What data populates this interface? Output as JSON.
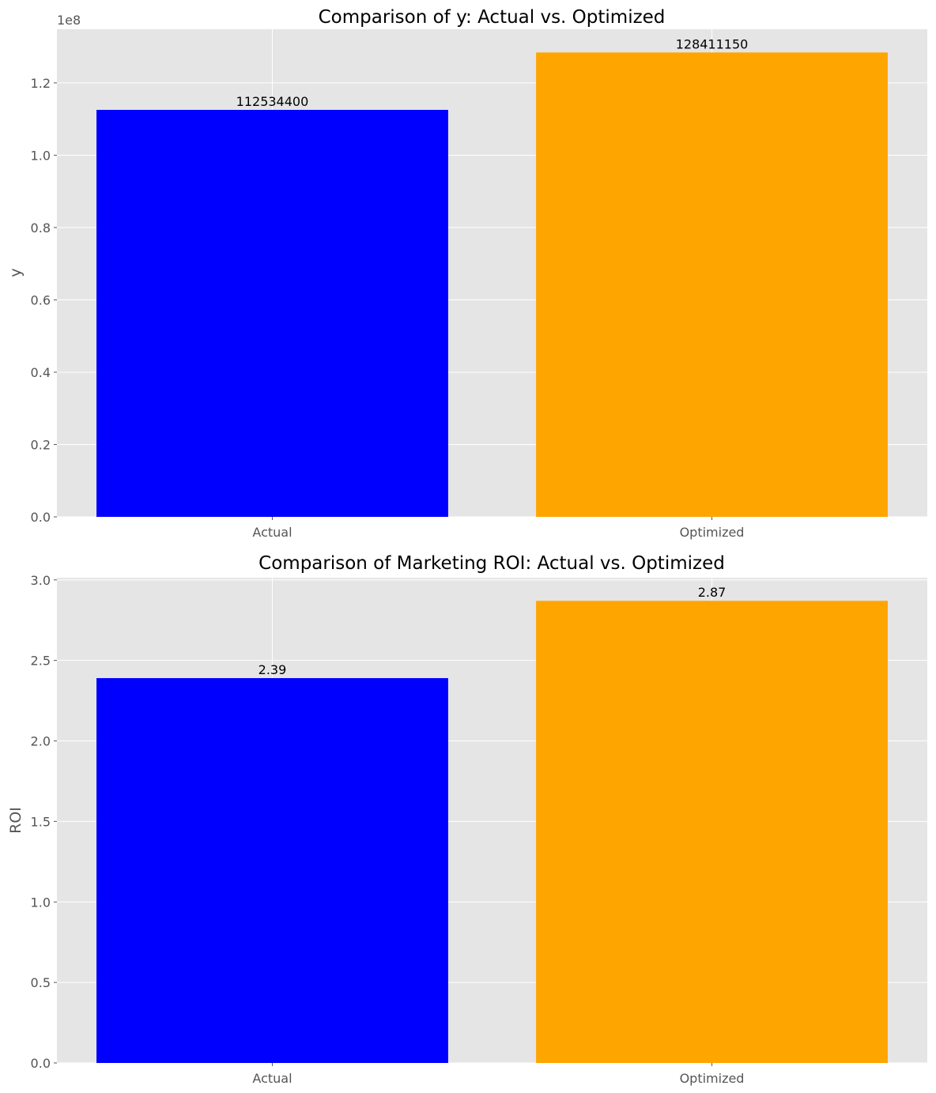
{
  "chart_data": [
    {
      "type": "bar",
      "title": "Comparison of y: Actual vs. Optimized",
      "xlabel": "",
      "ylabel": "y",
      "categories": [
        "Actual",
        "Optimized"
      ],
      "values": [
        112534400,
        128411150
      ],
      "data_labels": [
        "112534400",
        "128411150"
      ],
      "colors": [
        "#0000ff",
        "#ffa500"
      ],
      "ylim": [
        0,
        134831707
      ],
      "yticks": [
        0,
        20000000,
        40000000,
        60000000,
        80000000,
        100000000,
        120000000
      ],
      "ytick_labels": [
        "0.0",
        "0.2",
        "0.4",
        "0.6",
        "0.8",
        "1.0",
        "1.2"
      ],
      "y_offset_label": "1e8",
      "grid": true,
      "style": "ggplot"
    },
    {
      "type": "bar",
      "title": "Comparison of Marketing ROI: Actual vs. Optimized",
      "xlabel": "",
      "ylabel": "ROI",
      "categories": [
        "Actual",
        "Optimized"
      ],
      "values": [
        2.39,
        2.87
      ],
      "data_labels": [
        "2.39",
        "2.87"
      ],
      "colors": [
        "#0000ff",
        "#ffa500"
      ],
      "ylim": [
        0,
        3.0135
      ],
      "yticks": [
        0,
        0.5,
        1.0,
        1.5,
        2.0,
        2.5,
        3.0
      ],
      "ytick_labels": [
        "0.0",
        "0.5",
        "1.0",
        "1.5",
        "2.0",
        "2.5",
        "3.0"
      ],
      "grid": true,
      "style": "ggplot"
    }
  ]
}
